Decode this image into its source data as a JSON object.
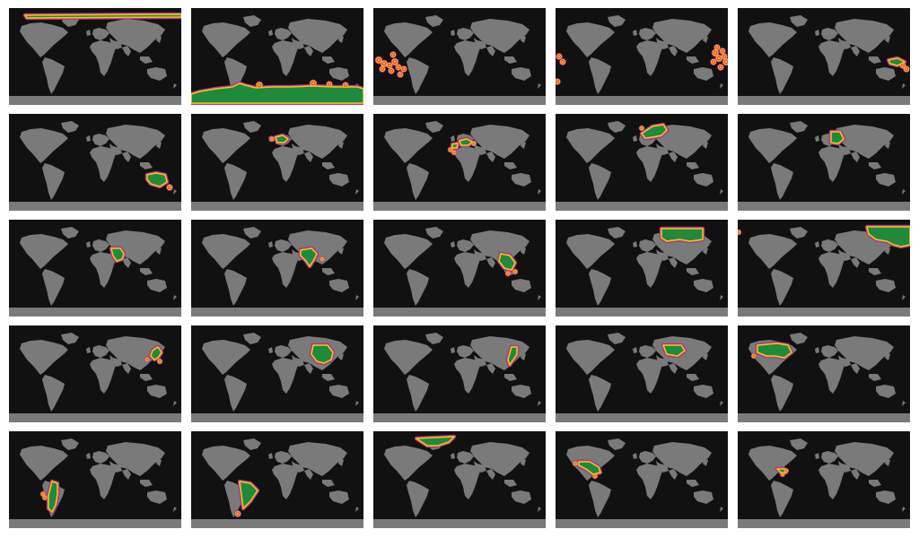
{
  "colors": {
    "page_background": "#ffffff",
    "map_background": "#111111",
    "land": "#7a7a7a",
    "region_fill": "#1f8a3c",
    "halo_inner": "#f2c230",
    "halo_mid": "#e8453c",
    "halo_outer": "#8e2fa8"
  },
  "panels": [
    {
      "region": "arctic-north-band",
      "title": ""
    },
    {
      "region": "antarctic-south-band",
      "title": ""
    },
    {
      "region": "pacific-islands-east",
      "title": ""
    },
    {
      "region": "pacific-islands-west",
      "title": ""
    },
    {
      "region": "melanesia",
      "title": ""
    },
    {
      "region": "australia",
      "title": ""
    },
    {
      "region": "western-europe",
      "title": ""
    },
    {
      "region": "mediterranean",
      "title": ""
    },
    {
      "region": "northern-europe",
      "title": ""
    },
    {
      "region": "eastern-europe",
      "title": ""
    },
    {
      "region": "middle-east",
      "title": ""
    },
    {
      "region": "south-asia",
      "title": ""
    },
    {
      "region": "southeast-asia",
      "title": ""
    },
    {
      "region": "northern-asia",
      "title": ""
    },
    {
      "region": "russian-far-east",
      "title": ""
    },
    {
      "region": "japan",
      "title": ""
    },
    {
      "region": "china",
      "title": ""
    },
    {
      "region": "korea-east-china",
      "title": ""
    },
    {
      "region": "central-asia",
      "title": ""
    },
    {
      "region": "north-america",
      "title": ""
    },
    {
      "region": "southern-south-america",
      "title": ""
    },
    {
      "region": "eastern-south-america",
      "title": ""
    },
    {
      "region": "greenland-arctic",
      "title": ""
    },
    {
      "region": "northern-south-america",
      "title": ""
    },
    {
      "region": "central-america",
      "title": ""
    }
  ]
}
